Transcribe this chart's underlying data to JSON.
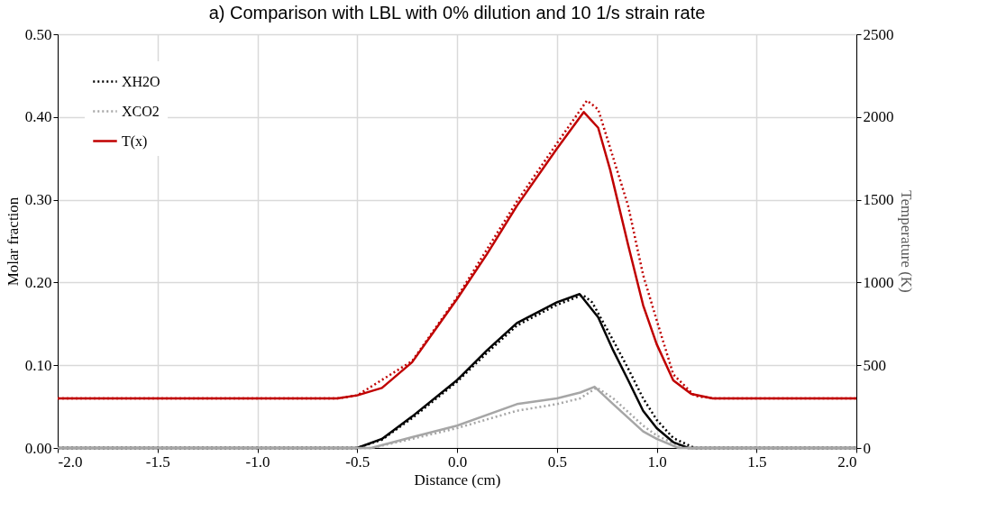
{
  "chart_data": {
    "type": "line",
    "title": "a) Comparison with LBL with 0% dilution and 10 1/s strain rate",
    "xlabel": "Distance (cm)",
    "ylabel": "Molar fraction",
    "y2label": "Temperature (K)",
    "xlim": [
      -2.0,
      2.0
    ],
    "xticks": [
      {
        "value": -2.0,
        "label": "-2.0"
      },
      {
        "value": -1.5,
        "label": "-1.5"
      },
      {
        "value": -1.0,
        "label": "-1.0"
      },
      {
        "value": -0.5,
        "label": "-0.5"
      },
      {
        "value": 0.0,
        "label": "0.0"
      },
      {
        "value": 0.5,
        "label": "0.5"
      },
      {
        "value": 1.0,
        "label": "1.0"
      },
      {
        "value": 1.5,
        "label": "1.5"
      },
      {
        "value": 2.0,
        "label": "2.0"
      }
    ],
    "ylim": [
      0,
      0.5
    ],
    "yticks": [
      {
        "value": 0,
        "label": "0.00"
      },
      {
        "value": 0.1,
        "label": "0.10"
      },
      {
        "value": 0.2,
        "label": "0.20"
      },
      {
        "value": 0.3,
        "label": "0.30"
      },
      {
        "value": 0.4,
        "label": "0.40"
      },
      {
        "value": 0.5,
        "label": "0.50"
      }
    ],
    "y2lim": [
      0,
      2500
    ],
    "y2ticks": [
      0,
      500,
      1000,
      1500,
      2000,
      2500
    ],
    "grid": true,
    "legend": "top left",
    "series": [
      {
        "name": "XH2O",
        "color": "#000000",
        "line_style": "dotted",
        "x": [
          -2.0,
          -0.5,
          -0.376,
          -0.225,
          0.0,
          0.15,
          0.3,
          0.5,
          0.63,
          0.677,
          0.782,
          0.857,
          0.932,
          1.0,
          1.083,
          1.19,
          2.0
        ],
        "values": [
          0,
          0,
          0.01,
          0.036,
          0.08,
          0.115,
          0.148,
          0.173,
          0.185,
          0.176,
          0.13,
          0.096,
          0.06,
          0.034,
          0.012,
          0,
          0
        ]
      },
      {
        "name": "XCO2",
        "color": "#a6a6a6",
        "line_style": "dotted",
        "x": [
          -2.0,
          -0.43,
          -0.225,
          0.0,
          0.3,
          0.5,
          0.617,
          0.7,
          0.782,
          0.932,
          1.0,
          1.11,
          1.15,
          2.0
        ],
        "values": [
          0,
          0,
          0.011,
          0.024,
          0.045,
          0.053,
          0.06,
          0.073,
          0.06,
          0.027,
          0.015,
          0.003,
          0,
          0
        ]
      },
      {
        "name": "T(x)",
        "color": "#c00000",
        "line_style": "solid",
        "axis": "y2",
        "x": [
          -2.0,
          -0.6,
          -0.5,
          -0.376,
          -0.225,
          0.0,
          0.15,
          0.3,
          0.5,
          0.635,
          0.707,
          0.767,
          0.857,
          0.932,
          1.0,
          1.083,
          1.173,
          1.28,
          2.0
        ],
        "values": [
          300,
          300,
          318,
          363,
          518,
          900,
          1172,
          1463,
          1808,
          2030,
          1935,
          1681,
          1227,
          863,
          627,
          409,
          327,
          300,
          300
        ]
      },
      {
        "color": "#000000",
        "line_style": "solid",
        "x": [
          -2.0,
          -0.5,
          -0.376,
          -0.225,
          0.0,
          0.15,
          0.3,
          0.5,
          0.614,
          0.707,
          0.782,
          0.857,
          0.932,
          1.0,
          1.083,
          1.16,
          2.0
        ],
        "values": [
          0,
          0,
          0.011,
          0.038,
          0.082,
          0.118,
          0.151,
          0.176,
          0.186,
          0.158,
          0.118,
          0.082,
          0.045,
          0.024,
          0.007,
          0,
          0
        ]
      },
      {
        "color": "#a6a6a6",
        "line_style": "solid",
        "x": [
          -2.0,
          -0.43,
          -0.225,
          0.0,
          0.3,
          0.5,
          0.617,
          0.689,
          0.782,
          0.932,
          1.0,
          1.11,
          2.0
        ],
        "values": [
          0,
          0,
          0.013,
          0.027,
          0.053,
          0.06,
          0.067,
          0.074,
          0.053,
          0.02,
          0.011,
          0,
          0
        ]
      },
      {
        "color": "#c00000",
        "line_style": "dotted",
        "axis": "y2",
        "x": [
          -2.0,
          -0.6,
          -0.5,
          -0.225,
          0.0,
          0.3,
          0.5,
          0.651,
          0.707,
          0.857,
          0.932,
          1.0,
          1.083,
          1.19,
          1.28,
          2.0
        ],
        "values": [
          300,
          300,
          318,
          525,
          910,
          1490,
          1840,
          2100,
          2046,
          1463,
          1045,
          772,
          445,
          315,
          300,
          300
        ]
      }
    ]
  }
}
